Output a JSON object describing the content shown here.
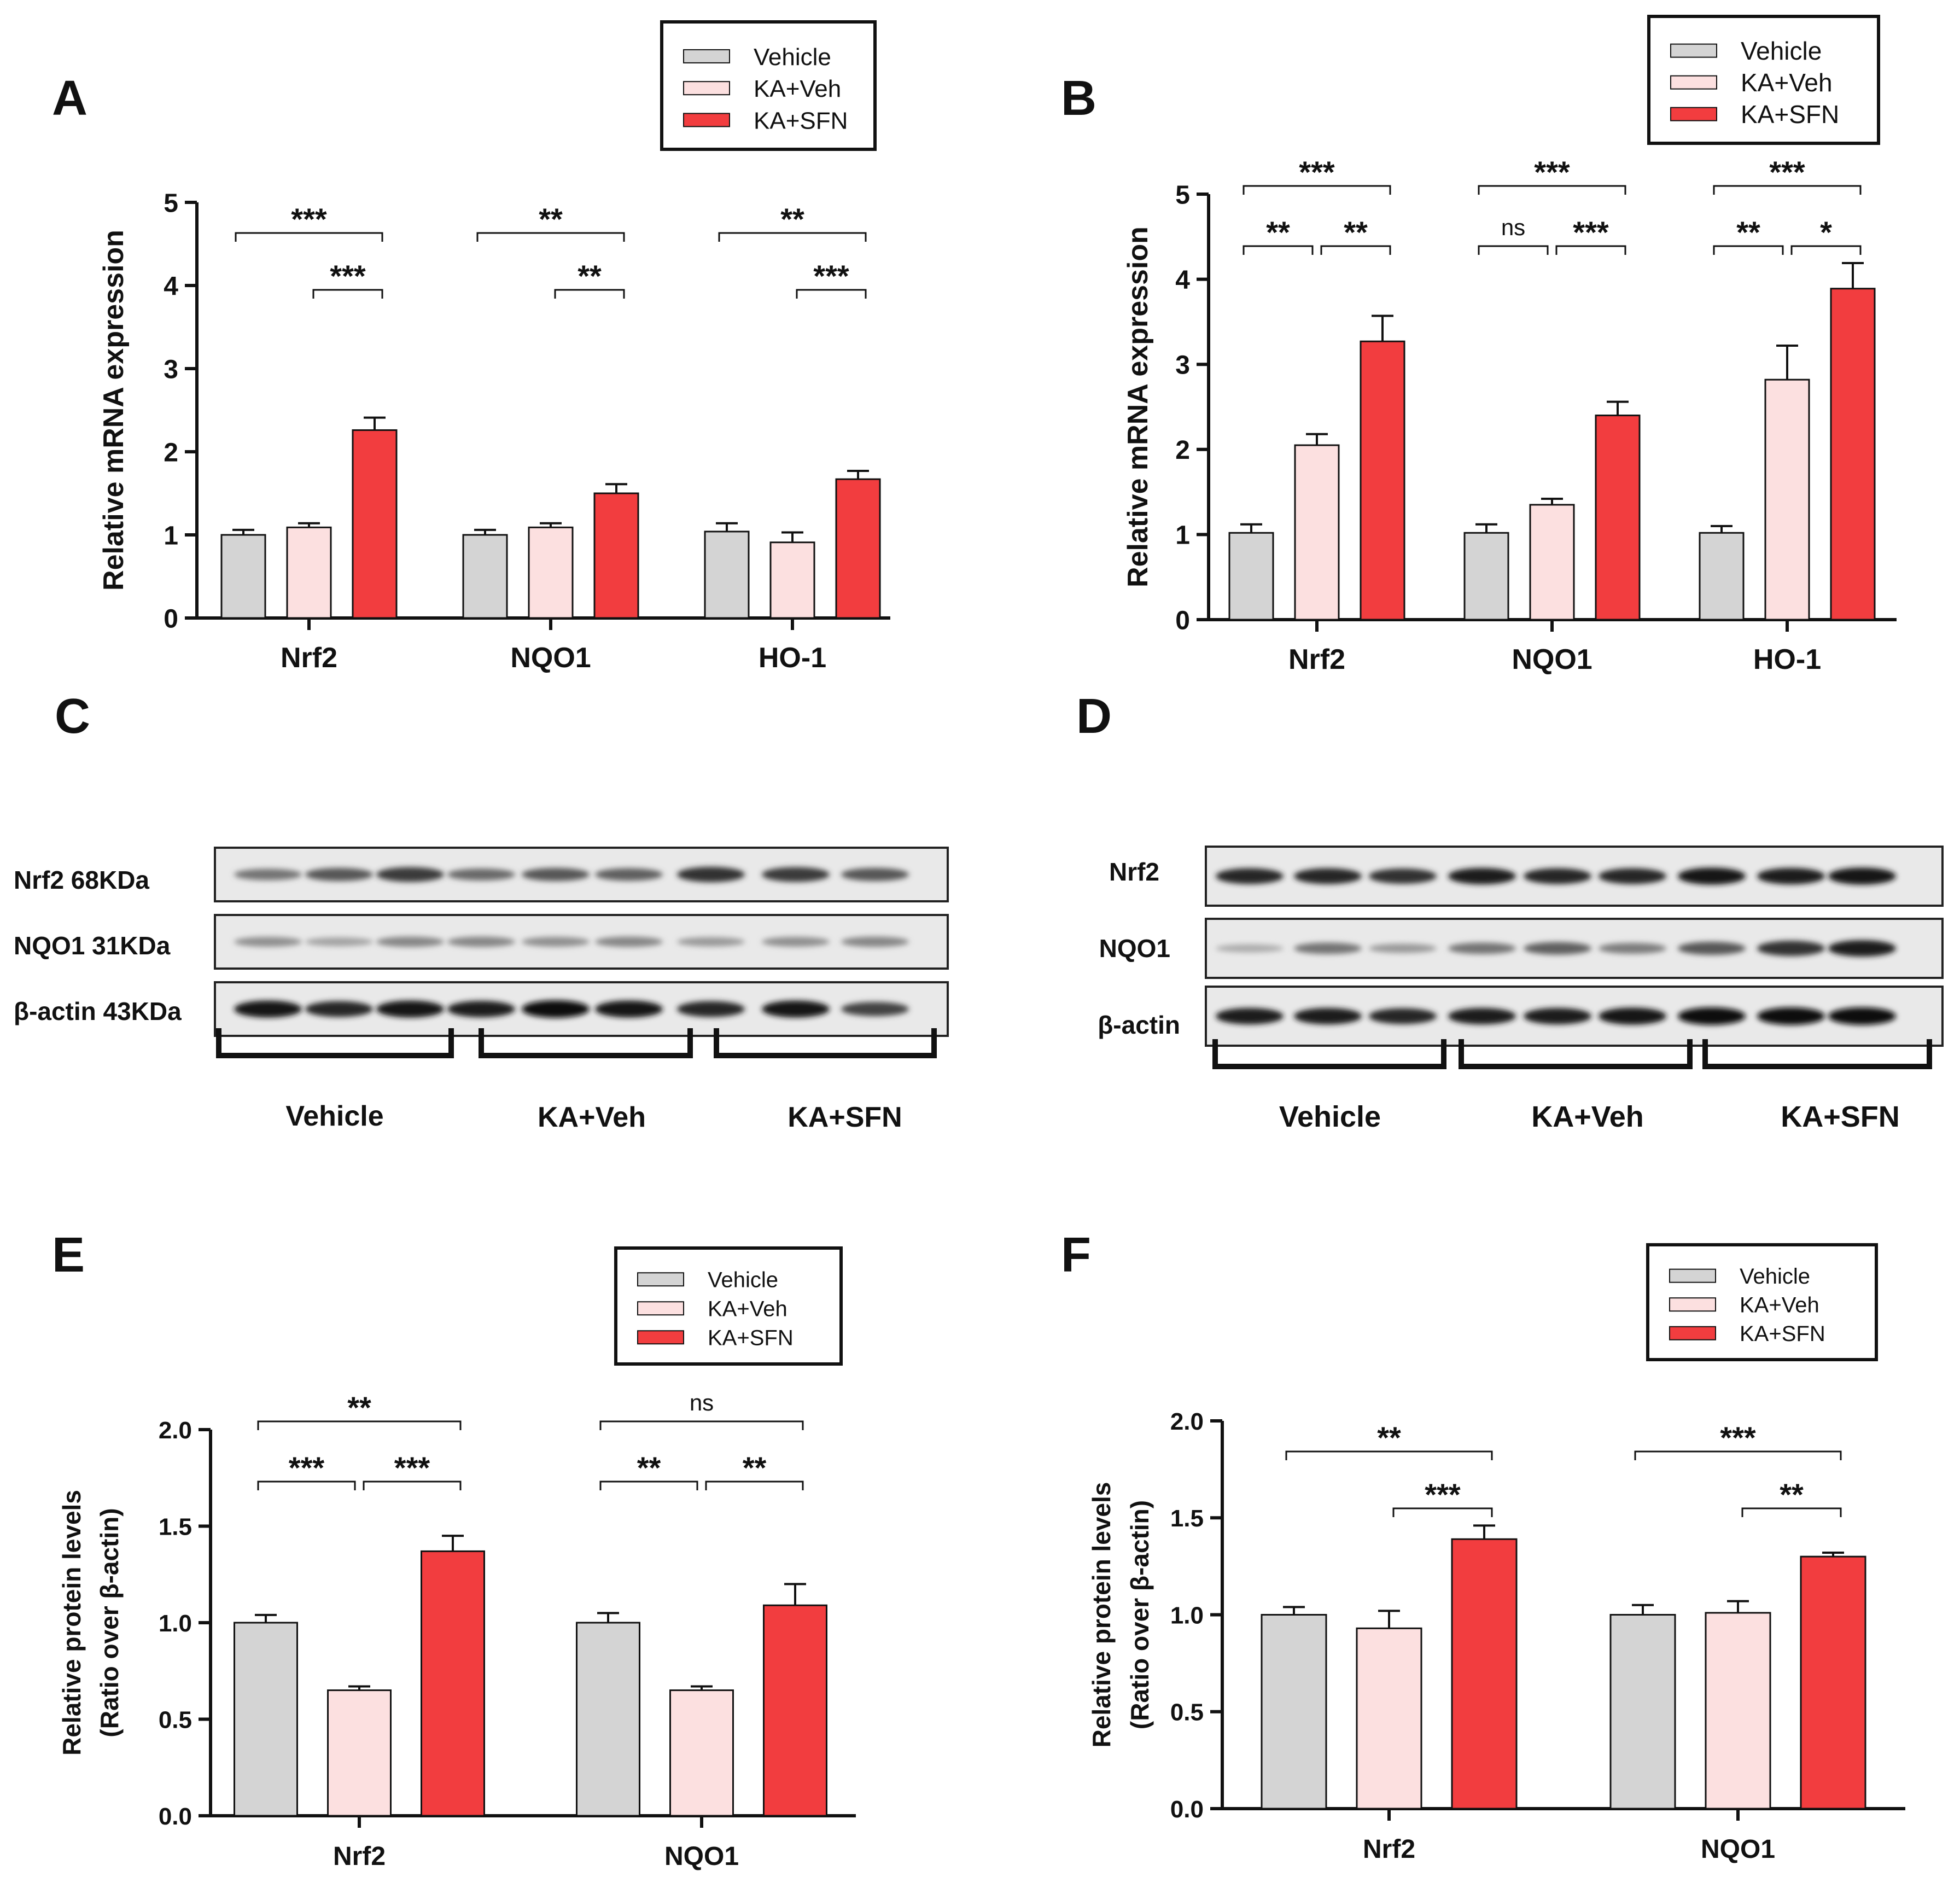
{
  "colors": {
    "vehicle": "#d4d4d4",
    "kaveh": "#fce0e0",
    "kasfn": "#f23d3f",
    "ink": "#111111"
  },
  "chart_data": [
    {
      "panel": "A",
      "type": "bar",
      "categories": [
        "Nrf2",
        "NQO1",
        "HO-1"
      ],
      "ylabel": "Relative mRNA expression",
      "ylim": [
        0,
        5
      ],
      "yticks": [
        "0",
        "1",
        "2",
        "3",
        "4",
        "5"
      ],
      "legend": [
        "Vehicle",
        "KA+Veh",
        "KA+SFN"
      ],
      "series": [
        {
          "name": "Vehicle",
          "values": [
            1.0,
            1.0,
            1.04
          ],
          "err": [
            0.06,
            0.06,
            0.1
          ]
        },
        {
          "name": "KA+Veh",
          "values": [
            1.09,
            1.09,
            0.91
          ],
          "err": [
            0.05,
            0.05,
            0.12
          ]
        },
        {
          "name": "KA+SFN",
          "values": [
            2.26,
            1.5,
            1.67
          ],
          "err": [
            0.15,
            0.11,
            0.1
          ]
        }
      ],
      "significance": [
        {
          "cat": 0,
          "from": 0,
          "to": 2,
          "level": 0,
          "label": "***"
        },
        {
          "cat": 0,
          "from": 1,
          "to": 2,
          "level": 1,
          "label": "***"
        },
        {
          "cat": 1,
          "from": 0,
          "to": 2,
          "level": 0,
          "label": "**"
        },
        {
          "cat": 1,
          "from": 1,
          "to": 2,
          "level": 1,
          "label": "**"
        },
        {
          "cat": 2,
          "from": 0,
          "to": 2,
          "level": 0,
          "label": "**"
        },
        {
          "cat": 2,
          "from": 1,
          "to": 2,
          "level": 1,
          "label": "***"
        }
      ]
    },
    {
      "panel": "B",
      "type": "bar",
      "categories": [
        "Nrf2",
        "NQO1",
        "HO-1"
      ],
      "ylabel": "Relative mRNA expression",
      "ylim": [
        0,
        5
      ],
      "yticks": [
        "0",
        "1",
        "2",
        "3",
        "4",
        "5"
      ],
      "legend": [
        "Vehicle",
        "KA+Veh",
        "KA+SFN"
      ],
      "series": [
        {
          "name": "Vehicle",
          "values": [
            1.02,
            1.02,
            1.02
          ],
          "err": [
            0.1,
            0.1,
            0.08
          ]
        },
        {
          "name": "KA+Veh",
          "values": [
            2.05,
            1.35,
            2.82
          ],
          "err": [
            0.13,
            0.07,
            0.4
          ]
        },
        {
          "name": "KA+SFN",
          "values": [
            3.27,
            2.4,
            3.89
          ],
          "err": [
            0.3,
            0.16,
            0.3
          ]
        }
      ],
      "significance": [
        {
          "cat": 0,
          "from": 0,
          "to": 2,
          "level": 0,
          "label": "***"
        },
        {
          "cat": 0,
          "from": 0,
          "to": 1,
          "level": 1,
          "label": "**"
        },
        {
          "cat": 0,
          "from": 1,
          "to": 2,
          "level": 1,
          "label": "**"
        },
        {
          "cat": 1,
          "from": 0,
          "to": 2,
          "level": 0,
          "label": "***"
        },
        {
          "cat": 1,
          "from": 0,
          "to": 1,
          "level": 1,
          "label": "ns"
        },
        {
          "cat": 1,
          "from": 1,
          "to": 2,
          "level": 1,
          "label": "***"
        },
        {
          "cat": 2,
          "from": 0,
          "to": 2,
          "level": 0,
          "label": "***"
        },
        {
          "cat": 2,
          "from": 0,
          "to": 1,
          "level": 1,
          "label": "**"
        },
        {
          "cat": 2,
          "from": 1,
          "to": 2,
          "level": 1,
          "label": "*"
        }
      ]
    },
    {
      "panel": "E",
      "type": "bar",
      "categories": [
        "Nrf2",
        "NQO1"
      ],
      "ylabel": "Relative protein levels",
      "ylabel2": "(Ratio over β-actin)",
      "ylim": [
        0,
        2
      ],
      "yticks": [
        "0.0",
        "0.5",
        "1.0",
        "1.5",
        "2.0"
      ],
      "legend": [
        "Vehicle",
        "KA+Veh",
        "KA+SFN"
      ],
      "series": [
        {
          "name": "Vehicle",
          "values": [
            1.0,
            1.0
          ],
          "err": [
            0.04,
            0.05
          ]
        },
        {
          "name": "KA+Veh",
          "values": [
            0.65,
            0.65
          ],
          "err": [
            0.02,
            0.02
          ]
        },
        {
          "name": "KA+SFN",
          "values": [
            1.37,
            1.09
          ],
          "err": [
            0.08,
            0.11
          ]
        }
      ],
      "significance": [
        {
          "cat": 0,
          "from": 0,
          "to": 2,
          "level": 0,
          "label": "**"
        },
        {
          "cat": 0,
          "from": 0,
          "to": 1,
          "level": 1,
          "label": "***"
        },
        {
          "cat": 0,
          "from": 1,
          "to": 2,
          "level": 1,
          "label": "***"
        },
        {
          "cat": 1,
          "from": 0,
          "to": 2,
          "level": 0,
          "label": "ns"
        },
        {
          "cat": 1,
          "from": 0,
          "to": 1,
          "level": 1,
          "label": "**"
        },
        {
          "cat": 1,
          "from": 1,
          "to": 2,
          "level": 1,
          "label": "**"
        }
      ]
    },
    {
      "panel": "F",
      "type": "bar",
      "categories": [
        "Nrf2",
        "NQO1"
      ],
      "ylabel": "Relative protein levels",
      "ylabel2": "(Ratio over β-actin)",
      "ylim": [
        0,
        2
      ],
      "yticks": [
        "0.0",
        "0.5",
        "1.0",
        "1.5",
        "2.0"
      ],
      "legend": [
        "Vehicle",
        "KA+Veh",
        "KA+SFN"
      ],
      "series": [
        {
          "name": "Vehicle",
          "values": [
            1.0,
            1.0
          ],
          "err": [
            0.04,
            0.05
          ]
        },
        {
          "name": "KA+Veh",
          "values": [
            0.93,
            1.01
          ],
          "err": [
            0.09,
            0.06
          ]
        },
        {
          "name": "KA+SFN",
          "values": [
            1.39,
            1.3
          ],
          "err": [
            0.07,
            0.02
          ]
        }
      ],
      "significance": [
        {
          "cat": 0,
          "from": 0,
          "to": 2,
          "level": 0,
          "label": "**"
        },
        {
          "cat": 0,
          "from": 1,
          "to": 2,
          "level": 1,
          "label": "***"
        },
        {
          "cat": 1,
          "from": 0,
          "to": 2,
          "level": 0,
          "label": "***"
        },
        {
          "cat": 1,
          "from": 1,
          "to": 2,
          "level": 1,
          "label": "**"
        }
      ]
    }
  ],
  "blots": {
    "C": {
      "rows": [
        "Nrf2 68KDa",
        "NQO1 31KDa",
        "β-actin 43KDa"
      ],
      "groups": [
        "Vehicle",
        "KA+Veh",
        "KA+SFN"
      ],
      "intensity": [
        [
          0.45,
          0.6,
          0.75,
          0.5,
          0.6,
          0.55,
          0.8,
          0.75,
          0.6
        ],
        [
          0.3,
          0.2,
          0.35,
          0.35,
          0.3,
          0.35,
          0.25,
          0.3,
          0.35
        ],
        [
          0.95,
          0.85,
          0.95,
          0.9,
          1.0,
          0.95,
          0.85,
          0.95,
          0.7
        ]
      ]
    },
    "D": {
      "rows": [
        "Nrf2",
        "NQO1",
        "β-actin"
      ],
      "groups": [
        "Vehicle",
        "KA+Veh",
        "KA+SFN"
      ],
      "intensity": [
        [
          0.85,
          0.85,
          0.8,
          0.9,
          0.85,
          0.85,
          0.95,
          0.9,
          0.95
        ],
        [
          0.15,
          0.45,
          0.25,
          0.45,
          0.55,
          0.4,
          0.6,
          0.8,
          0.9
        ],
        [
          0.9,
          0.9,
          0.85,
          0.9,
          0.9,
          0.95,
          1.0,
          1.0,
          1.0
        ]
      ]
    }
  }
}
